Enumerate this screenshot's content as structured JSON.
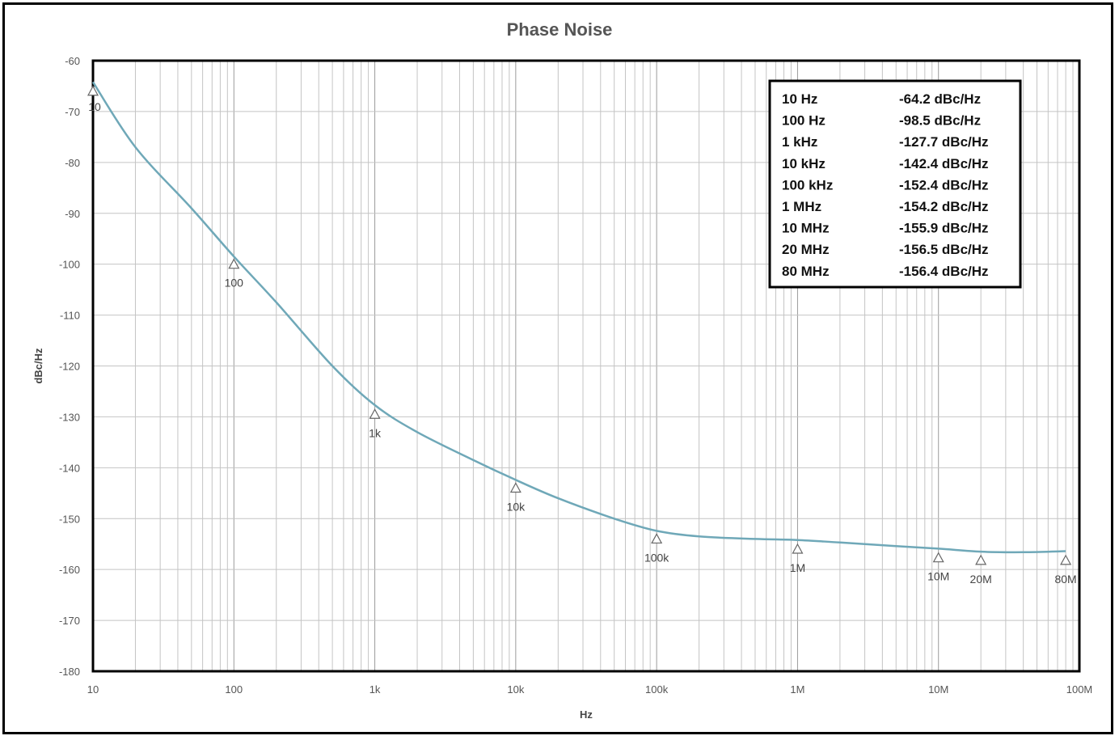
{
  "chart_data": {
    "type": "line",
    "title": "Phase Noise",
    "xlabel": "Hz",
    "ylabel": "dBc/Hz",
    "x_scale": "log",
    "xlim": [
      10,
      100000000
    ],
    "ylim": [
      -180,
      -60
    ],
    "x_ticks": [
      {
        "value": 10,
        "label": "10"
      },
      {
        "value": 100,
        "label": "100"
      },
      {
        "value": 1000,
        "label": "1k"
      },
      {
        "value": 10000,
        "label": "10k"
      },
      {
        "value": 100000,
        "label": "100k"
      },
      {
        "value": 1000000,
        "label": "1M"
      },
      {
        "value": 10000000,
        "label": "10M"
      },
      {
        "value": 100000000,
        "label": "100M"
      }
    ],
    "y_ticks": [
      -60,
      -70,
      -80,
      -90,
      -100,
      -110,
      -120,
      -130,
      -140,
      -150,
      -160,
      -170,
      -180
    ],
    "grid": true,
    "line_color": "#6fa8b8",
    "series": [
      {
        "x": [
          10,
          20,
          50,
          100,
          200,
          500,
          1000,
          2000,
          5000,
          10000,
          20000,
          50000,
          100000,
          200000,
          500000,
          1000000,
          2000000,
          5000000,
          10000000,
          20000000,
          40000000,
          80000000
        ],
        "values": [
          -64.2,
          -77,
          -89,
          -98.5,
          -107.5,
          -120,
          -127.7,
          -133,
          -138.5,
          -142.4,
          -146,
          -150,
          -152.4,
          -153.5,
          -154,
          -154.2,
          -154.7,
          -155.4,
          -155.9,
          -156.5,
          -156.6,
          -156.4
        ]
      }
    ],
    "markers": [
      {
        "x": 10,
        "y": -66,
        "label": "10"
      },
      {
        "x": 100,
        "y": -100,
        "label": "100"
      },
      {
        "x": 1000,
        "y": -129.5,
        "label": "1k"
      },
      {
        "x": 10000,
        "y": -144,
        "label": "10k"
      },
      {
        "x": 100000,
        "y": -154,
        "label": "100k"
      },
      {
        "x": 1000000,
        "y": -156,
        "label": "1M"
      },
      {
        "x": 10000000,
        "y": -157.7,
        "label": "10M"
      },
      {
        "x": 20000000,
        "y": -158.2,
        "label": "20M"
      },
      {
        "x": 80000000,
        "y": -158.2,
        "label": "80M"
      }
    ],
    "legend_placement": "top-right",
    "legend": [
      {
        "freq": "10 Hz",
        "value": "-64.2 dBc/Hz"
      },
      {
        "freq": "100 Hz",
        "value": "-98.5 dBc/Hz"
      },
      {
        "freq": "1 kHz",
        "value": "-127.7 dBc/Hz"
      },
      {
        "freq": "10 kHz",
        "value": "-142.4 dBc/Hz"
      },
      {
        "freq": "100 kHz",
        "value": "-152.4 dBc/Hz"
      },
      {
        "freq": "1 MHz",
        "value": "-154.2 dBc/Hz"
      },
      {
        "freq": "10 MHz",
        "value": "-155.9 dBc/Hz"
      },
      {
        "freq": "20 MHz",
        "value": "-156.5 dBc/Hz"
      },
      {
        "freq": "80 MHz",
        "value": "-156.4 dBc/Hz"
      }
    ]
  }
}
